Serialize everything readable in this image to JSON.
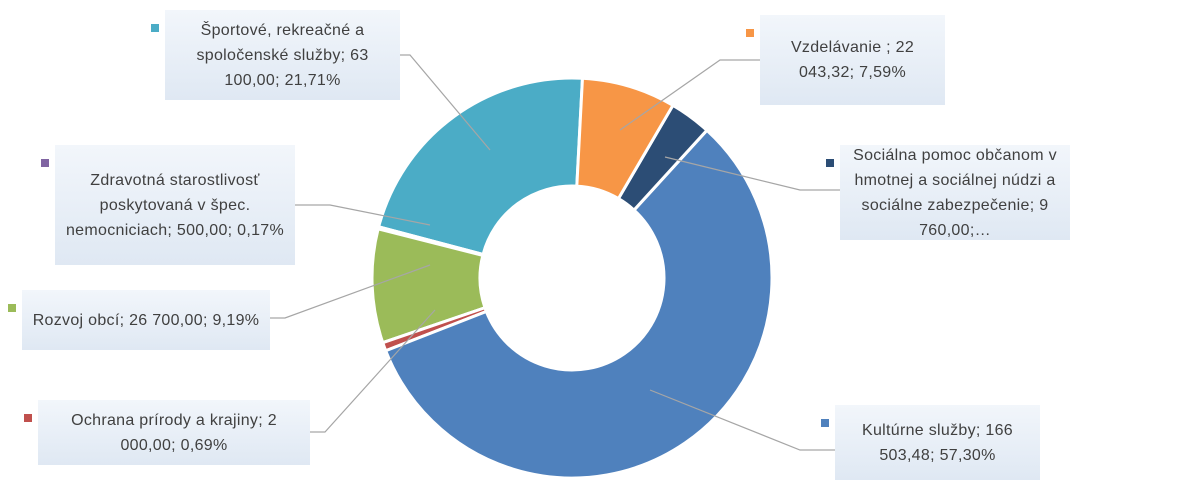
{
  "chart_data": {
    "type": "donut",
    "categories": [
      "Vzdelávanie",
      "Sociálna pomoc občanom v hmotnej a sociálnej núdzi a sociálne zabezpečenie",
      "Kultúrne služby",
      "Ochrana prírody a krajiny",
      "Rozvoj obcí",
      "Zdravotná starostlivosť poskytovaná v špec. nemocniciach",
      "Športové, rekreačné a spoločenské služby"
    ],
    "values": [
      22043.32,
      9760,
      166503.48,
      2000,
      26700,
      500,
      63100
    ],
    "value_labels": [
      "Vzdelávanie ; 22 043,32; 7,59%",
      "Sociálna pomoc občanom v hmotnej a sociálnej núdzi a sociálne zabezpečenie; 9 760,00;…",
      "Kultúrne služby; 166 503,48; 57,30%",
      "Ochrana prírody a krajiny; 2 000,00; 0,69%",
      "Rozvoj obcí; 26 700,00; 9,19%",
      "Zdravotná starostlivosť poskytovaná v špec. nemocniciach; 500,00; 0,17%",
      "Športové, rekreačné a spoločenské služby; 63 100,00; 21,71%"
    ],
    "colors": [
      "#f79646",
      "#2c4d75",
      "#4f81bd",
      "#c0504d",
      "#9bbb59",
      "#8064a2",
      "#4bacc6"
    ]
  }
}
